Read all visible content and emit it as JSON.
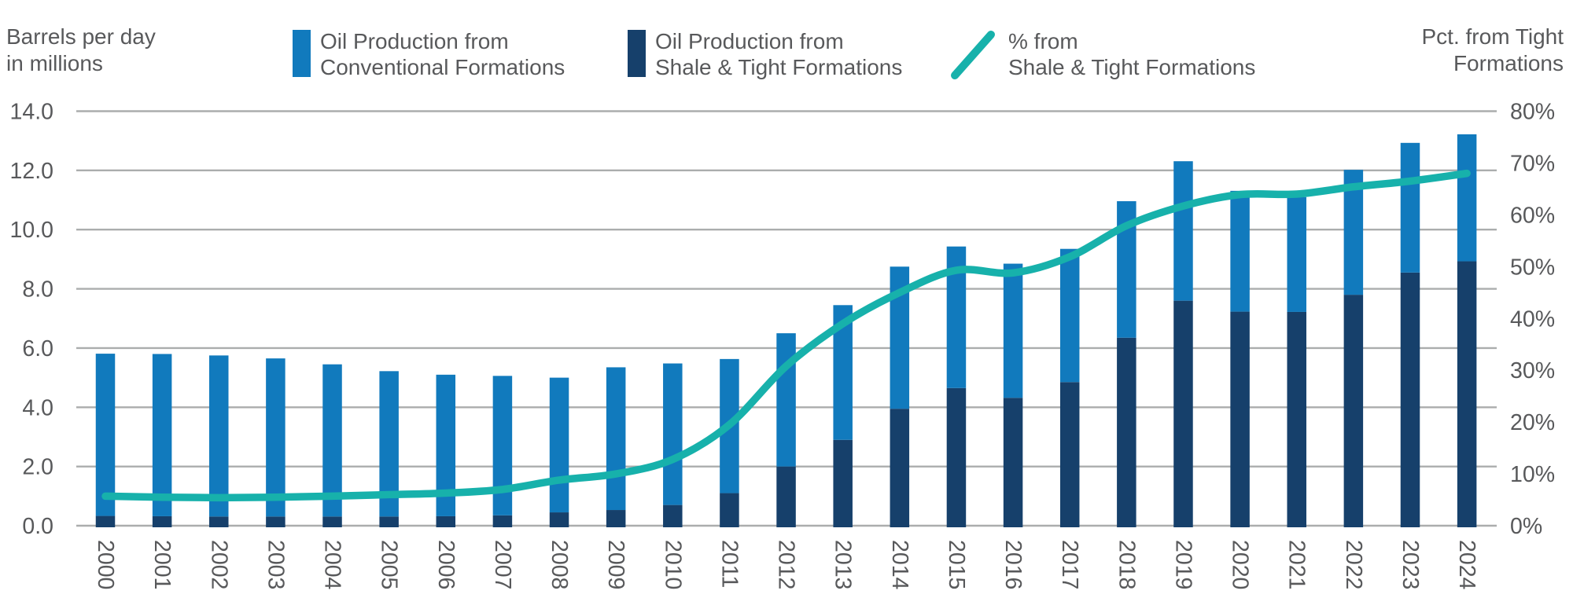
{
  "header": {
    "left_axis_title_line1": "Barrels per day",
    "left_axis_title_line2": "in millions",
    "right_axis_title_line1": "Pct. from Tight",
    "right_axis_title_line2": "Formations"
  },
  "legend": [
    {
      "line1": "Oil Production from",
      "line2": "Conventional Formations"
    },
    {
      "line1": "Oil Production from",
      "line2": "Shale & Tight Formations"
    },
    {
      "line1": "% from",
      "line2": "Shale & Tight Formations"
    }
  ],
  "colors": {
    "conventional_blue": "#117abd",
    "shale_navy": "#16406b",
    "pct_teal": "#17b1ab",
    "gridline_gray": "#abadad",
    "text_gray": "#58595b"
  },
  "chart_data": {
    "type": "bar",
    "subtype": "stacked-bars-with-percent-line",
    "title": "",
    "categories": [
      "2000",
      "2001",
      "2002",
      "2003",
      "2004",
      "2005",
      "2006",
      "2007",
      "2008",
      "2009",
      "2010",
      "2011",
      "2012",
      "2013",
      "2014",
      "2015",
      "2016",
      "2017",
      "2018",
      "2019",
      "2020",
      "2021",
      "2022",
      "2023",
      "2024"
    ],
    "series": [
      {
        "name": "Oil Production from Shale & Tight Formations",
        "role": "stack-bottom",
        "color": "#16406b",
        "values": [
          0.33,
          0.32,
          0.31,
          0.31,
          0.31,
          0.31,
          0.32,
          0.35,
          0.45,
          0.53,
          0.7,
          1.1,
          2.0,
          2.9,
          3.95,
          4.65,
          4.32,
          4.85,
          6.35,
          7.6,
          7.23,
          7.22,
          7.8,
          8.55,
          8.93
        ]
      },
      {
        "name": "Oil Production from Conventional Formations",
        "role": "stack-top",
        "color": "#117abd",
        "values": [
          5.48,
          5.48,
          5.44,
          5.34,
          5.14,
          4.91,
          4.78,
          4.71,
          4.55,
          4.82,
          4.78,
          4.53,
          4.5,
          4.55,
          4.8,
          4.78,
          4.53,
          4.5,
          4.61,
          4.71,
          4.08,
          3.88,
          4.22,
          4.38,
          4.29
        ]
      },
      {
        "name": "% from Shale & Tight Formations",
        "role": "line",
        "axis": "right",
        "color": "#17b1ab",
        "values": [
          5.7,
          5.5,
          5.4,
          5.5,
          5.7,
          6.0,
          6.3,
          7.0,
          8.8,
          10.0,
          12.8,
          19.5,
          30.8,
          39.0,
          45.0,
          49.3,
          48.8,
          51.9,
          57.9,
          61.7,
          63.9,
          64.0,
          65.4,
          66.5,
          68.0
        ]
      }
    ],
    "left_axis": {
      "title": "Barrels per day in millions",
      "range": [
        0,
        14
      ],
      "tick_values": [
        0,
        2,
        4,
        6,
        8,
        10,
        12,
        14
      ],
      "tick_labels": [
        "0.0",
        "2.0",
        "4.0",
        "6.0",
        "8.0",
        "10.0",
        "12.0",
        "14.0"
      ]
    },
    "right_axis": {
      "title": "Pct. from Tight Formations",
      "range": [
        0,
        80
      ],
      "tick_values": [
        0,
        10,
        20,
        30,
        40,
        50,
        60,
        70,
        80
      ],
      "tick_labels": [
        "0%",
        "10%",
        "20%",
        "30%",
        "40%",
        "50%",
        "60%",
        "70%",
        "80%"
      ]
    },
    "grid": "horizontal",
    "legend_position": "top"
  }
}
